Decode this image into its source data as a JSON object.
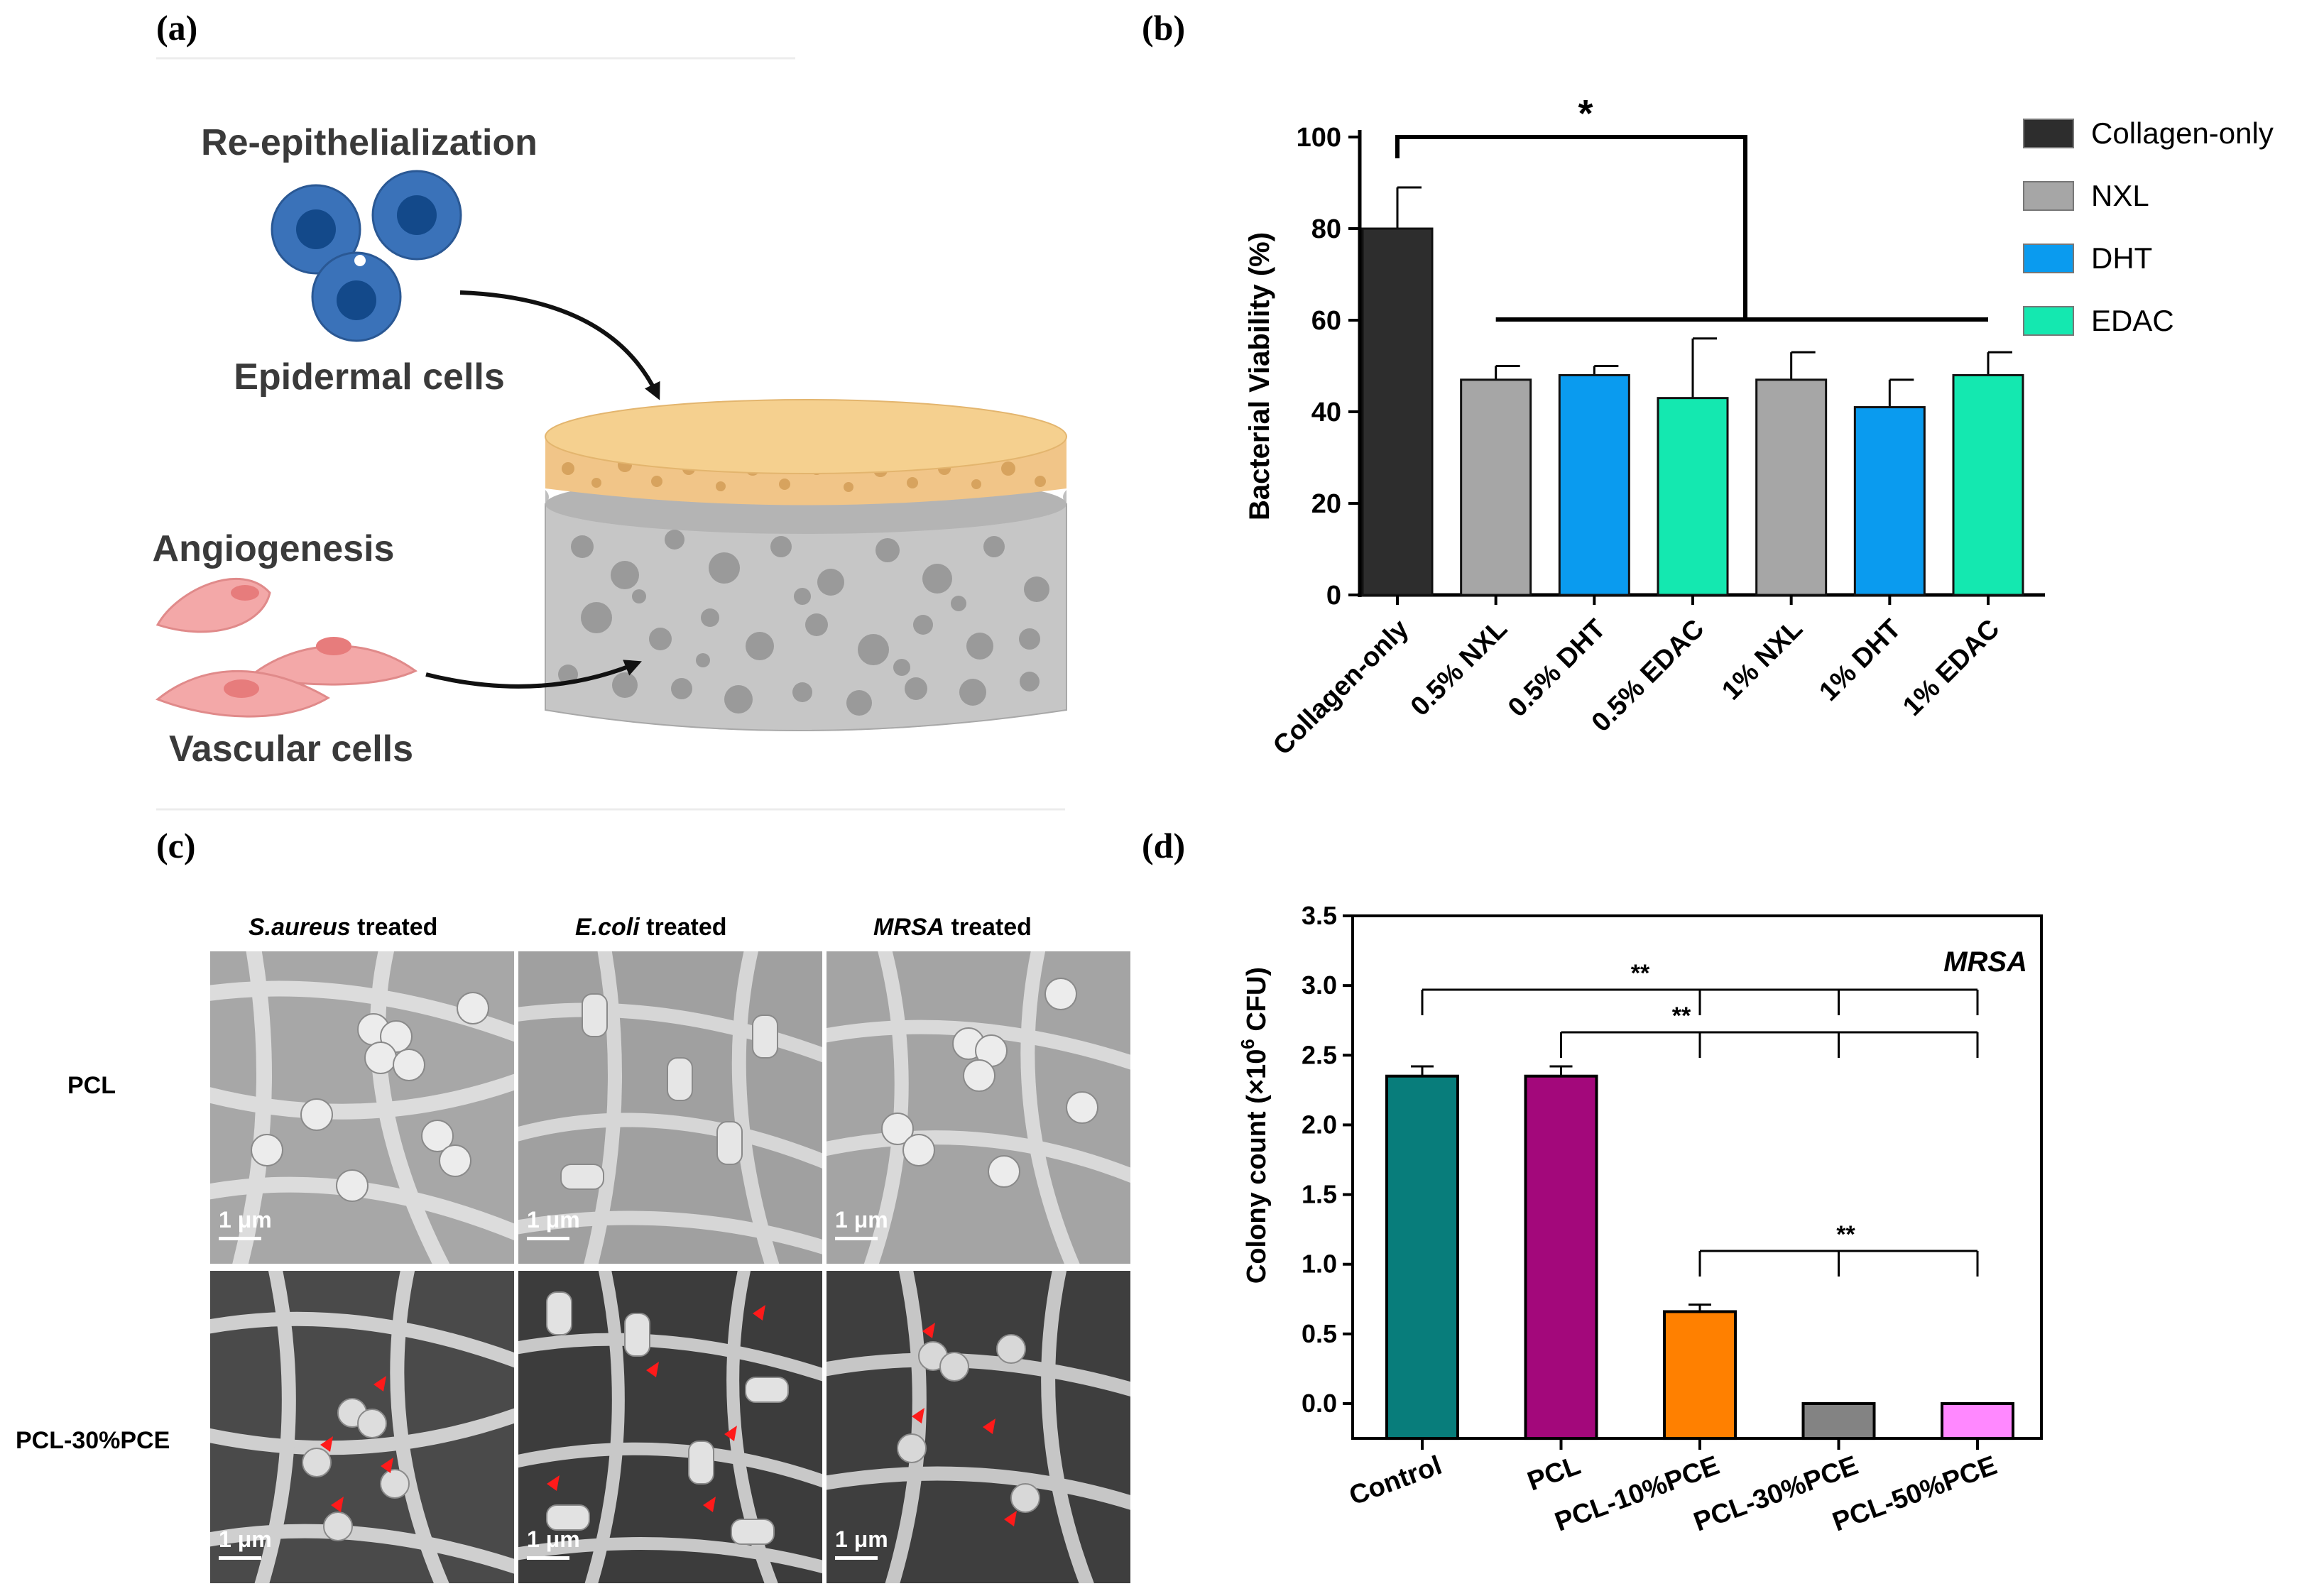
{
  "panels": {
    "a": {
      "label": "(a)",
      "re_epi_title": "Re-epithelialization",
      "epidermal_label": "Epidermal cells",
      "angiogenesis_title": "Angiogenesis",
      "vascular_label": "Vascular cells"
    },
    "b": {
      "label": "(b)"
    },
    "c": {
      "label": "(c)",
      "col_headers": [
        {
          "italic": "S.aureus",
          "rest": " treated"
        },
        {
          "italic": "E.coli",
          "rest": " treated"
        },
        {
          "italic": "MRSA",
          "rest": " treated"
        }
      ],
      "row_labels": [
        "PCL",
        "PCL-30%PCE"
      ],
      "scale_label": "1 μm"
    },
    "d": {
      "label": "(d)"
    }
  },
  "chart_data": [
    {
      "type": "bar",
      "ylabel": "Bacterial Viability (%)",
      "ylim": [
        0,
        100
      ],
      "yticks": [
        0,
        20,
        40,
        60,
        80,
        100
      ],
      "categories": [
        "Collagen-only",
        "0.5% NXL",
        "0.5% DHT",
        "0.5% EDAC",
        "1% NXL",
        "1% DHT",
        "1% EDAC"
      ],
      "values": [
        80,
        47,
        48,
        43,
        47,
        41,
        48
      ],
      "errors": [
        9,
        3,
        2,
        13,
        6,
        6,
        5
      ],
      "bar_groups": [
        "Collagen-only",
        "NXL",
        "DHT",
        "EDAC",
        "NXL",
        "DHT",
        "EDAC"
      ],
      "legend": [
        {
          "name": "Collagen-only",
          "color": "#2d2d2d"
        },
        {
          "name": "NXL",
          "color": "#a6a6a6"
        },
        {
          "name": "DHT",
          "color": "#0a9bef"
        },
        {
          "name": "EDAC",
          "color": "#14e8b0"
        }
      ],
      "legend_position": "right",
      "significance": [
        {
          "label": "*",
          "from": "Collagen-only",
          "to": [
            "0.5% NXL",
            "0.5% DHT",
            "0.5% EDAC",
            "1% NXL",
            "1% DHT",
            "1% EDAC"
          ]
        }
      ]
    },
    {
      "type": "bar",
      "ylabel_prefix": "Colony count (×10",
      "ylabel_sup": "6",
      "ylabel_suffix": " CFU)",
      "ylim": [
        -0.25,
        3.5
      ],
      "yticks": [
        "0.0",
        "0.5",
        "1.0",
        "1.5",
        "2.0",
        "2.5",
        "3.0",
        "3.5"
      ],
      "categories": [
        "Control",
        "PCL",
        "PCL-10%PCE",
        "PCL-30%PCE",
        "PCL-50%PCE"
      ],
      "values": [
        2.35,
        2.35,
        0.66,
        0.0,
        0.0
      ],
      "errors": [
        0.07,
        0.07,
        0.05,
        0,
        0
      ],
      "colors": [
        "#087d7b",
        "#a3087b",
        "#ff8000",
        "#838383",
        "#ff88ff"
      ],
      "annotation": "MRSA",
      "significance": [
        {
          "label": "**",
          "from": "Control",
          "to": [
            "PCL-10%PCE",
            "PCL-30%PCE",
            "PCL-50%PCE"
          ]
        },
        {
          "label": "**",
          "from": "PCL",
          "to": [
            "PCL-10%PCE",
            "PCL-30%PCE",
            "PCL-50%PCE"
          ]
        },
        {
          "label": "**",
          "from": "PCL-10%PCE",
          "to": [
            "PCL-30%PCE",
            "PCL-50%PCE"
          ]
        }
      ]
    }
  ]
}
